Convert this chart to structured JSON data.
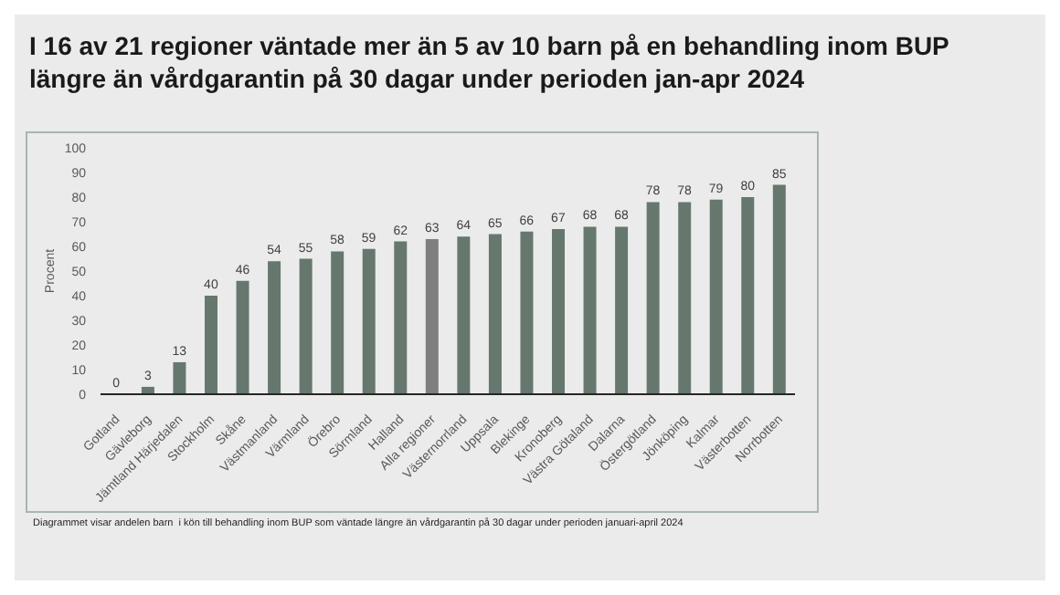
{
  "chart_data": {
    "type": "bar",
    "title": "I 16 av 21 regioner väntade mer än 5 av 10 barn på en behandling inom BUP längre än vårdgarantin på 30 dagar under perioden jan-apr 2024",
    "ylabel": "Procent",
    "categories": [
      "Gotland",
      "Gävleborg",
      "Jämtland Härjedalen",
      "Stockholm",
      "Skåne",
      "Västmanland",
      "Värmland",
      "Örebro",
      "Sörmland",
      "Halland",
      "Alla regioner",
      "Västernorrland",
      "Uppsala",
      "Blekinge",
      "Kronoberg",
      "Västra Götaland",
      "Dalarna",
      "Östergötland",
      "Jönköping",
      "Kalmar",
      "Västerbotten",
      "Norrbotten"
    ],
    "values": [
      0,
      3,
      13,
      40,
      46,
      54,
      55,
      58,
      59,
      62,
      63,
      64,
      65,
      66,
      67,
      68,
      68,
      78,
      78,
      79,
      80,
      85
    ],
    "colors": [
      "#66786e",
      "#66786e",
      "#66786e",
      "#66786e",
      "#66786e",
      "#66786e",
      "#66786e",
      "#66786e",
      "#66786e",
      "#66786e",
      "#7f7f7f",
      "#66786e",
      "#66786e",
      "#66786e",
      "#66786e",
      "#66786e",
      "#66786e",
      "#66786e",
      "#66786e",
      "#66786e",
      "#66786e",
      "#66786e"
    ],
    "ylim": [
      0,
      100
    ],
    "yticks": [
      0,
      10,
      20,
      30,
      40,
      50,
      60,
      70,
      80,
      90,
      100
    ],
    "grid": false,
    "legend": false,
    "data_labels": true,
    "annotations": [
      "Diagrammet visar andelen barn  i kön till behandling inom BUP som väntade längre än vårdgarantin på 30 dagar under perioden januari-april 2024"
    ]
  }
}
